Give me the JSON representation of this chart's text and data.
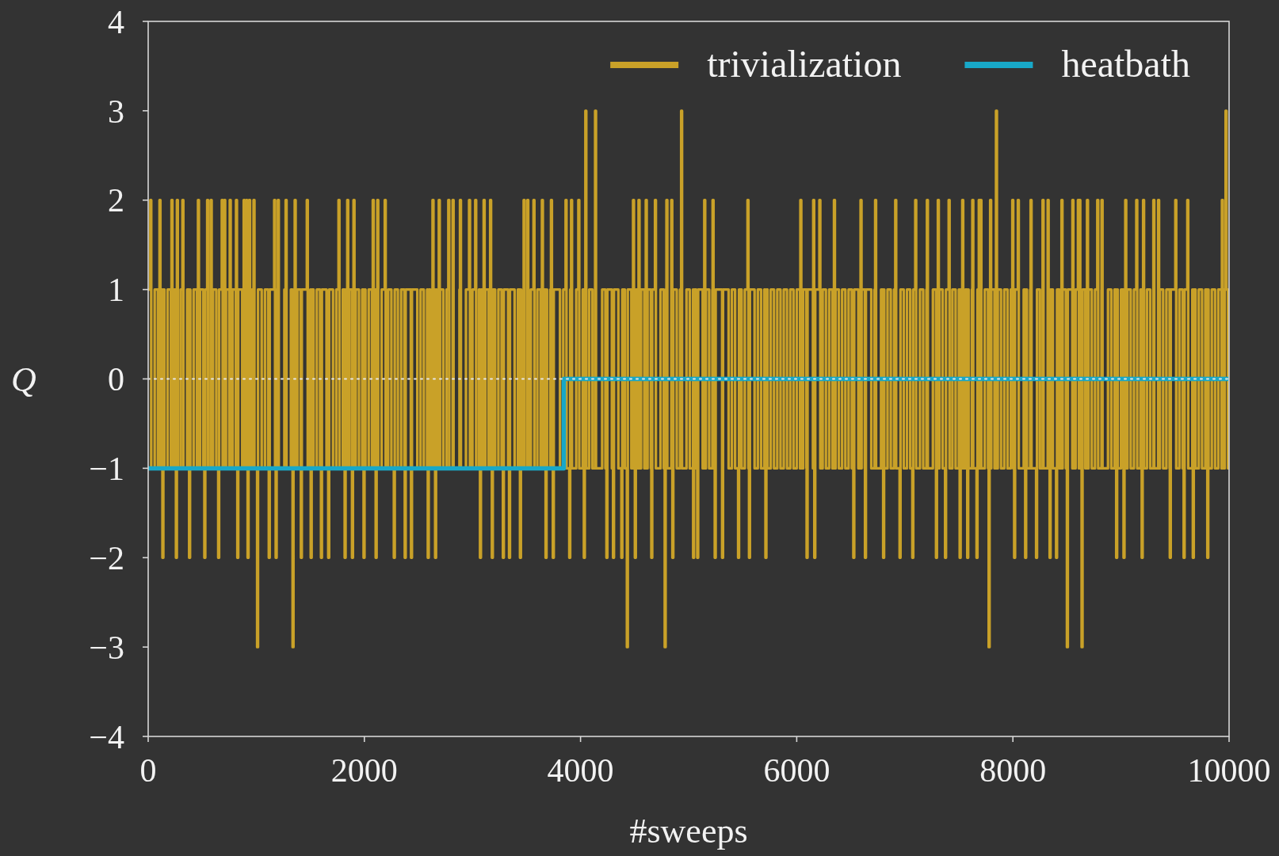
{
  "chart_data": {
    "type": "step",
    "xlabel": "#sweeps",
    "ylabel": "Q",
    "xlim": [
      0,
      10000
    ],
    "ylim": [
      -4,
      4
    ],
    "xticks": [
      0,
      2000,
      4000,
      6000,
      8000,
      10000
    ],
    "yticks": [
      {
        "value": -4,
        "label": "−4"
      },
      {
        "value": -3,
        "label": "−3"
      },
      {
        "value": -2,
        "label": "−2"
      },
      {
        "value": -1,
        "label": "−1"
      },
      0,
      1,
      2,
      3,
      4
    ],
    "legend": "top right",
    "ref_lines": [
      {
        "axis": "y",
        "value": 0,
        "color": "#e6e6e6",
        "line_style": "dotted"
      }
    ],
    "series": [
      {
        "name": "trivialization",
        "color": "#c9a128",
        "x": [
          0,
          20,
          28,
          30,
          60,
          90,
          105,
          113,
          120,
          132,
          140,
          150,
          180,
          210,
          216,
          224,
          240,
          257,
          265,
          266,
          274,
          300,
          317,
          325,
          330,
          360,
          379,
          387,
          390,
          420,
          450,
          461,
          469,
          480,
          510,
          520,
          528,
          540,
          546,
          554,
          570,
          579,
          587,
          600,
          630,
          648,
          656,
          660,
          681,
          689,
          690,
          704,
          712,
          720,
          750,
          755,
          763,
          780,
          810,
          813,
          821,
          825,
          833,
          840,
          870,
          884,
          892,
          900,
          907,
          915,
          920,
          928,
          934,
          942,
          960,
          975,
          983,
          990,
          1008,
          1016,
          1020,
          1050,
          1080,
          1110,
          1116,
          1124,
          1140,
          1166,
          1174,
          1180,
          1188,
          1200,
          1208,
          1230,
          1260,
          1272,
          1280,
          1290,
          1320,
          1336,
          1344,
          1350,
          1356,
          1364,
          1380,
          1410,
          1413,
          1421,
          1440,
          1468,
          1476,
          1500,
          1504,
          1512,
          1530,
          1560,
          1590,
          1599,
          1607,
          1620,
          1650,
          1666,
          1674,
          1680,
          1710,
          1740,
          1761,
          1769,
          1770,
          1800,
          1818,
          1826,
          1830,
          1842,
          1850,
          1860,
          1886,
          1894,
          1900,
          1908,
          1920,
          1950,
          1980,
          1993,
          2001,
          2010,
          2040,
          2070,
          2078,
          2086,
          2100,
          2105,
          2113,
          2120,
          2128,
          2130,
          2160,
          2189,
          2197,
          2220,
          2250,
          2273,
          2281,
          2310,
          2340,
          2370,
          2374,
          2382,
          2400,
          2430,
          2432,
          2440,
          2460,
          2490,
          2520,
          2550,
          2580,
          2587,
          2595,
          2610,
          2631,
          2639,
          2640,
          2655,
          2663,
          2670,
          2689,
          2697,
          2700,
          2730,
          2760,
          2777,
          2785,
          2790,
          2817,
          2825,
          2850,
          2880,
          2885,
          2893,
          2910,
          2940,
          2969,
          2977,
          3000,
          3026,
          3034,
          3060,
          3070,
          3078,
          3090,
          3104,
          3112,
          3120,
          3150,
          3164,
          3172,
          3180,
          3188,
          3210,
          3240,
          3270,
          3282,
          3290,
          3300,
          3330,
          3339,
          3347,
          3360,
          3390,
          3420,
          3440,
          3448,
          3450,
          3474,
          3482,
          3508,
          3516,
          3540,
          3565,
          3573,
          3600,
          3630,
          3643,
          3651,
          3660,
          3677,
          3685,
          3690,
          3720,
          3727,
          3735,
          3744,
          3752,
          3780,
          3810,
          3840,
          3862,
          3870,
          3896,
          3904,
          3913,
          3921,
          3930,
          3960,
          3980,
          3988,
          3990,
          4020,
          4031,
          4039,
          4045,
          4053,
          4080,
          4110,
          4135,
          4143,
          4170,
          4200,
          4230,
          4240,
          4248,
          4260,
          4290,
          4301,
          4309,
          4320,
          4350,
          4378,
          4386,
          4410,
          4429,
          4437,
          4440,
          4470,
          4486,
          4494,
          4500,
          4503,
          4511,
          4530,
          4537,
          4545,
          4560,
          4590,
          4604,
          4612,
          4620,
          4650,
          4655,
          4663,
          4680,
          4689,
          4697,
          4710,
          4740,
          4770,
          4779,
          4787,
          4795,
          4803,
          4830,
          4840,
          4848,
          4850,
          4858,
          4860,
          4890,
          4920,
          4931,
          4939,
          4950,
          4980,
          5010,
          5040,
          5042,
          5050,
          5070,
          5080,
          5088,
          5100,
          5130,
          5145,
          5153,
          5160,
          5190,
          5220,
          5222,
          5230,
          5242,
          5250,
          5280,
          5310,
          5318,
          5340,
          5370,
          5400,
          5430,
          5458,
          5466,
          5490,
          5520,
          5545,
          5553,
          5559,
          5567,
          5580,
          5610,
          5640,
          5670,
          5700,
          5711,
          5719,
          5730,
          5760,
          5790,
          5820,
          5850,
          5880,
          5910,
          5940,
          5970,
          6000,
          6030,
          6034,
          6042,
          6060,
          6090,
          6092,
          6100,
          6120,
          6150,
          6153,
          6161,
          6163,
          6171,
          6180,
          6210,
          6218,
          6240,
          6270,
          6300,
          6330,
          6345,
          6353,
          6360,
          6390,
          6420,
          6450,
          6480,
          6510,
          6524,
          6532,
          6540,
          6570,
          6591,
          6599,
          6600,
          6630,
          6632,
          6640,
          6660,
          6690,
          6720,
          6726,
          6734,
          6750,
          6780,
          6800,
          6808,
          6810,
          6840,
          6870,
          6900,
          6912,
          6920,
          6930,
          6952,
          6960,
          6990,
          7020,
          7050,
          7070,
          7078,
          7080,
          7097,
          7105,
          7110,
          7140,
          7170,
          7200,
          7205,
          7213,
          7230,
          7260,
          7289,
          7297,
          7306,
          7314,
          7320,
          7350,
          7373,
          7381,
          7406,
          7414,
          7440,
          7470,
          7500,
          7508,
          7516,
          7530,
          7532,
          7540,
          7560,
          7578,
          7586,
          7590,
          7620,
          7625,
          7633,
          7650,
          7664,
          7672,
          7680,
          7685,
          7693,
          7700,
          7708,
          7710,
          7740,
          7770,
          7776,
          7784,
          7790,
          7798,
          7800,
          7830,
          7844,
          7852,
          7860,
          7890,
          7920,
          7950,
          7980,
          7995,
          8003,
          8010,
          8012,
          8020,
          8040,
          8046,
          8054,
          8070,
          8100,
          8114,
          8122,
          8130,
          8160,
          8164,
          8172,
          8190,
          8215,
          8223,
          8250,
          8275,
          8283,
          8310,
          8322,
          8330,
          8340,
          8348,
          8370,
          8400,
          8408,
          8430,
          8450,
          8458,
          8460,
          8490,
          8500,
          8508,
          8520,
          8550,
          8551,
          8559,
          8580,
          8602,
          8610,
          8615,
          8623,
          8636,
          8644,
          8670,
          8686,
          8694,
          8700,
          8730,
          8760,
          8781,
          8789,
          8790,
          8820,
          8821,
          8829,
          8850,
          8880,
          8910,
          8940,
          8956,
          8964,
          8970,
          9000,
          9024,
          9032,
          9040,
          9048,
          9060,
          9090,
          9120,
          9142,
          9150,
          9180,
          9192,
          9200,
          9205,
          9213,
          9240,
          9270,
          9300,
          9308,
          9330,
          9344,
          9352,
          9360,
          9390,
          9420,
          9450,
          9452,
          9460,
          9480,
          9503,
          9511,
          9540,
          9570,
          9580,
          9588,
          9600,
          9614,
          9622,
          9630,
          9660,
          9665,
          9673,
          9690,
          9720,
          9750,
          9780,
          9799,
          9807,
          9810,
          9840,
          9870,
          9900,
          9930,
          9934,
          9942,
          9960,
          9968,
          9976,
          9990,
          10000
        ],
        "values": [
          1,
          2,
          -1,
          -1,
          1,
          -1,
          2,
          -1,
          1,
          -2,
          1,
          -1,
          1,
          -1,
          2,
          -1,
          1,
          -2,
          1,
          2,
          -1,
          1,
          2,
          -1,
          -1,
          1,
          -2,
          1,
          -1,
          1,
          -1,
          2,
          -1,
          1,
          -1,
          -2,
          1,
          1,
          2,
          -1,
          -1,
          2,
          -1,
          1,
          -1,
          -2,
          1,
          1,
          2,
          -1,
          -1,
          2,
          -1,
          1,
          -1,
          2,
          -1,
          1,
          -1,
          2,
          -1,
          -2,
          1,
          1,
          -1,
          2,
          -1,
          1,
          2,
          -1,
          -2,
          1,
          2,
          -1,
          1,
          2,
          -1,
          -1,
          -3,
          1,
          1,
          -1,
          1,
          -1,
          -2,
          1,
          1,
          2,
          -1,
          -2,
          1,
          2,
          -1,
          -1,
          1,
          2,
          -1,
          -1,
          1,
          -3,
          1,
          -1,
          2,
          -1,
          1,
          -1,
          -2,
          1,
          1,
          2,
          -1,
          1,
          -2,
          1,
          -1,
          1,
          -1,
          -2,
          1,
          1,
          -1,
          -2,
          1,
          1,
          -1,
          1,
          2,
          -1,
          -1,
          1,
          -2,
          1,
          -1,
          2,
          -1,
          1,
          -2,
          1,
          2,
          -1,
          1,
          -1,
          1,
          -2,
          1,
          -1,
          1,
          -1,
          2,
          -1,
          1,
          -2,
          1,
          2,
          -1,
          -1,
          1,
          2,
          -1,
          1,
          -1,
          -2,
          1,
          -1,
          1,
          -1,
          -2,
          1,
          1,
          -1,
          -2,
          1,
          1,
          -1,
          1,
          -1,
          1,
          -2,
          1,
          -1,
          2,
          -1,
          1,
          -2,
          1,
          -1,
          2,
          -1,
          1,
          -1,
          1,
          2,
          -1,
          -1,
          2,
          -1,
          -1,
          1,
          2,
          -1,
          -1,
          1,
          2,
          -1,
          1,
          2,
          -1,
          1,
          -2,
          1,
          -1,
          2,
          -1,
          1,
          -1,
          2,
          -1,
          -2,
          1,
          -1,
          1,
          -1,
          -2,
          1,
          1,
          -1,
          -2,
          1,
          1,
          -1,
          1,
          -2,
          1,
          -1,
          2,
          -1,
          2,
          -1,
          1,
          2,
          -1,
          1,
          -1,
          2,
          -1,
          1,
          -2,
          1,
          -1,
          1,
          2,
          -1,
          -2,
          1,
          1,
          -1,
          1,
          2,
          -1,
          -2,
          1,
          2,
          -1,
          -1,
          1,
          2,
          -1,
          -1,
          1,
          -2,
          1,
          3,
          -1,
          1,
          -1,
          3,
          -1,
          -1,
          1,
          -1,
          -2,
          1,
          1,
          -1,
          -2,
          1,
          1,
          -1,
          -2,
          1,
          -1,
          -3,
          1,
          1,
          -1,
          2,
          -1,
          1,
          -2,
          1,
          -1,
          2,
          -1,
          1,
          -1,
          2,
          -1,
          1,
          -1,
          -2,
          1,
          1,
          2,
          -1,
          -1,
          1,
          -1,
          -3,
          1,
          2,
          -1,
          -1,
          2,
          -1,
          -2,
          1,
          1,
          -1,
          1,
          3,
          -1,
          -1,
          1,
          -1,
          1,
          -2,
          1,
          -1,
          -2,
          1,
          1,
          -1,
          2,
          -1,
          1,
          -1,
          1,
          2,
          -1,
          -2,
          1,
          1,
          -2,
          1,
          1,
          -1,
          1,
          -1,
          -2,
          1,
          -1,
          1,
          2,
          -1,
          -2,
          1,
          1,
          -1,
          1,
          -1,
          1,
          -2,
          1,
          -1,
          1,
          -1,
          1,
          -1,
          1,
          -1,
          1,
          -1,
          1,
          -1,
          2,
          -1,
          1,
          -1,
          -2,
          1,
          1,
          -1,
          2,
          -1,
          -2,
          1,
          1,
          2,
          -1,
          1,
          -1,
          1,
          -1,
          2,
          -1,
          1,
          -1,
          1,
          -1,
          1,
          -1,
          -2,
          1,
          1,
          -1,
          2,
          -1,
          1,
          -1,
          -2,
          1,
          1,
          -1,
          1,
          2,
          -1,
          -1,
          1,
          -2,
          1,
          -1,
          1,
          -1,
          1,
          2,
          -1,
          -1,
          -2,
          1,
          -1,
          1,
          -1,
          -2,
          1,
          1,
          2,
          -1,
          -1,
          1,
          -1,
          1,
          2,
          -1,
          -1,
          1,
          -2,
          1,
          2,
          -1,
          1,
          -1,
          -2,
          1,
          2,
          -1,
          1,
          -1,
          1,
          -2,
          1,
          -1,
          2,
          -1,
          1,
          -2,
          1,
          -1,
          1,
          2,
          -1,
          -1,
          -2,
          1,
          1,
          2,
          -1,
          2,
          -1,
          -1,
          1,
          -1,
          -3,
          1,
          2,
          -1,
          1,
          -1,
          3,
          -1,
          1,
          -1,
          1,
          -1,
          1,
          2,
          -1,
          -1,
          -2,
          1,
          1,
          2,
          -1,
          -1,
          1,
          -2,
          1,
          -1,
          1,
          2,
          -1,
          -1,
          -2,
          1,
          -1,
          2,
          -1,
          -1,
          2,
          -1,
          -2,
          1,
          -1,
          -2,
          1,
          -1,
          2,
          -1,
          1,
          -1,
          -3,
          1,
          1,
          -1,
          2,
          -1,
          1,
          2,
          -1,
          2,
          -1,
          -3,
          1,
          -1,
          2,
          -1,
          1,
          -1,
          1,
          2,
          -1,
          -1,
          1,
          2,
          -1,
          -1,
          1,
          -1,
          1,
          -2,
          1,
          -1,
          1,
          -2,
          1,
          2,
          -1,
          1,
          -1,
          1,
          2,
          -1,
          1,
          -2,
          1,
          2,
          -1,
          1,
          -1,
          2,
          -1,
          -1,
          2,
          -1,
          1,
          -1,
          1,
          -1,
          -2,
          1,
          1,
          2,
          -1,
          1,
          -1,
          -2,
          1,
          1,
          2,
          -1,
          -1,
          1,
          -2,
          1,
          -1,
          1,
          -1,
          1,
          -2,
          1,
          -1,
          1,
          -1,
          1,
          -1,
          2,
          -1,
          1,
          3,
          1,
          -1,
          -1
        ]
      },
      {
        "name": "heatbath",
        "color": "#18a8c8",
        "x": [
          0,
          3845,
          10000
        ],
        "values": [
          -1,
          0,
          0
        ]
      }
    ]
  }
}
